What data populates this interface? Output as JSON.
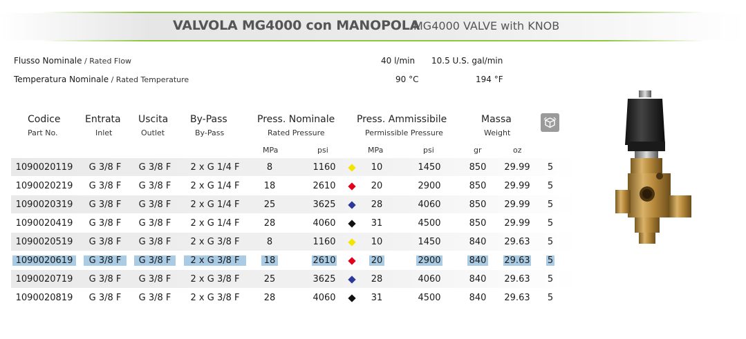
{
  "title": {
    "it": "VALVOLA MG4000 con MANOPOLA",
    "en": "MG4000 VALVE with KNOB"
  },
  "specs": [
    {
      "label_it": "Flusso Nominale",
      "label_en": " / Rated Flow",
      "v1": "40 l/min",
      "v2": "10.5 U.S. gal/min"
    },
    {
      "label_it": "Temperatura Nominale",
      "label_en": " / Rated Temperature",
      "v1": "90 °C",
      "v2": "194  °F"
    }
  ],
  "columns": {
    "code": {
      "it": "Codice",
      "en": "Part No."
    },
    "inlet": {
      "it": "Entrata",
      "en": "Inlet"
    },
    "outlet": {
      "it": "Uscita",
      "en": "Outlet"
    },
    "bypass": {
      "it": "By-Pass",
      "en": "By-Pass"
    },
    "press_nom": {
      "it": "Press. Nominale",
      "en": "Rated Pressure"
    },
    "press_adm": {
      "it": "Press. Ammissibile",
      "en": "Permissible Pressure"
    },
    "mass": {
      "it": "Massa",
      "en": "Weight"
    }
  },
  "units": {
    "mpa": "MPa",
    "psi": "psi",
    "mpa2": "MPa",
    "psi2": "psi",
    "gr": "gr",
    "oz": "oz"
  },
  "colors": {
    "yellow": "#f2e600",
    "red": "#e3001b",
    "blue": "#2b3a9a",
    "black": "#111111",
    "highlight": "#a9cbe3",
    "accent": "#8dc63f"
  },
  "rows": [
    {
      "code": "1090020119",
      "inlet": "G 3/8 F",
      "outlet": "G 3/8 F",
      "bypass": "2 x G 1/4 F",
      "mpa": "8",
      "psi": "1160",
      "dot": "yellow",
      "mpa2": "10",
      "psi2": "1450",
      "gr": "850",
      "oz": "29.99",
      "pack": "5",
      "selected": false
    },
    {
      "code": "1090020219",
      "inlet": "G 3/8 F",
      "outlet": "G 3/8 F",
      "bypass": "2 x G 1/4 F",
      "mpa": "18",
      "psi": "2610",
      "dot": "red",
      "mpa2": "20",
      "psi2": "2900",
      "gr": "850",
      "oz": "29.99",
      "pack": "5",
      "selected": false
    },
    {
      "code": "1090020319",
      "inlet": "G 3/8 F",
      "outlet": "G 3/8 F",
      "bypass": "2 x G 1/4 F",
      "mpa": "25",
      "psi": "3625",
      "dot": "blue",
      "mpa2": "28",
      "psi2": "4060",
      "gr": "850",
      "oz": "29.99",
      "pack": "5",
      "selected": false
    },
    {
      "code": "1090020419",
      "inlet": "G 3/8 F",
      "outlet": "G 3/8 F",
      "bypass": "2 x G 1/4 F",
      "mpa": "28",
      "psi": "4060",
      "dot": "black",
      "mpa2": "31",
      "psi2": "4500",
      "gr": "850",
      "oz": "29.99",
      "pack": "5",
      "selected": false
    },
    {
      "code": "1090020519",
      "inlet": "G 3/8 F",
      "outlet": "G 3/8 F",
      "bypass": "2 x G 3/8 F",
      "mpa": "8",
      "psi": "1160",
      "dot": "yellow",
      "mpa2": "10",
      "psi2": "1450",
      "gr": "840",
      "oz": "29.63",
      "pack": "5",
      "selected": false
    },
    {
      "code": "1090020619",
      "inlet": "G 3/8 F",
      "outlet": "G 3/8 F",
      "bypass": "2 x G 3/8 F",
      "mpa": "18",
      "psi": "2610",
      "dot": "red",
      "mpa2": "20",
      "psi2": "2900",
      "gr": "840",
      "oz": "29.63",
      "pack": "5",
      "selected": true
    },
    {
      "code": "1090020719",
      "inlet": "G 3/8 F",
      "outlet": "G 3/8 F",
      "bypass": "2 x G 3/8 F",
      "mpa": "25",
      "psi": "3625",
      "dot": "blue",
      "mpa2": "28",
      "psi2": "4060",
      "gr": "840",
      "oz": "29.63",
      "pack": "5",
      "selected": false
    },
    {
      "code": "1090020819",
      "inlet": "G 3/8 F",
      "outlet": "G 3/8 F",
      "bypass": "2 x G 3/8 F",
      "mpa": "28",
      "psi": "4060",
      "dot": "black",
      "mpa2": "31",
      "psi2": "4500",
      "gr": "840",
      "oz": "29.63",
      "pack": "5",
      "selected": false
    }
  ],
  "icons": {
    "package": "package-box-icon",
    "product": "valve-product-image"
  }
}
